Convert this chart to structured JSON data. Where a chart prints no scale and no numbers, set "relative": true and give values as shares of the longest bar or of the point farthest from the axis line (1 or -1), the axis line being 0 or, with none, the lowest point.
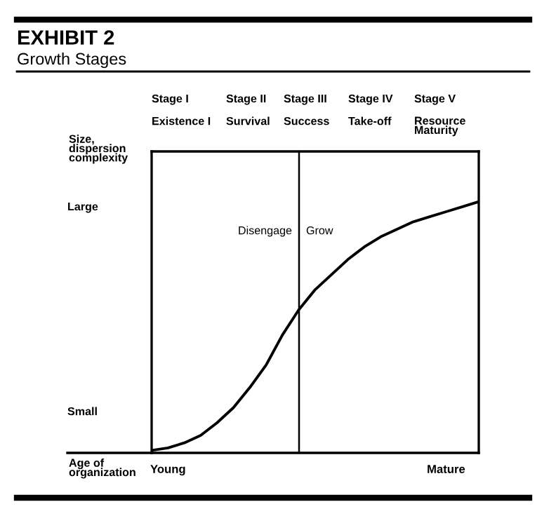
{
  "chart_data": {
    "type": "line",
    "title": "EXHIBIT 2",
    "subtitle": "Growth Stages",
    "xlabel": "Age of\norganization",
    "ylabel": "Size,\ndispersion\ncomplexity",
    "categories": [
      null,
      "Young",
      null,
      null,
      null,
      null,
      null,
      null,
      null,
      null,
      null,
      null,
      null,
      null,
      null,
      null,
      null,
      null,
      "Mature",
      null,
      null
    ],
    "series": [
      {
        "color": "#000000",
        "values": [
          0.01,
          0.02,
          0.04,
          0.07,
          0.12,
          0.18,
          0.26,
          0.35,
          0.47,
          0.57,
          0.65,
          0.71,
          0.77,
          0.82,
          0.86,
          0.89,
          0.92,
          0.94,
          0.96,
          0.98,
          1
        ]
      }
    ],
    "relative": true,
    "annotations": [
      "Stage I",
      "Stage II",
      "Stage III",
      "Stage IV",
      "Stage V",
      "Existence I",
      "Survival",
      "Success",
      "Take-off",
      "Resource\nMaturity",
      "Disengage",
      "Grow",
      "Large",
      "Small"
    ],
    "marker": "none",
    "line_style": "solid"
  }
}
